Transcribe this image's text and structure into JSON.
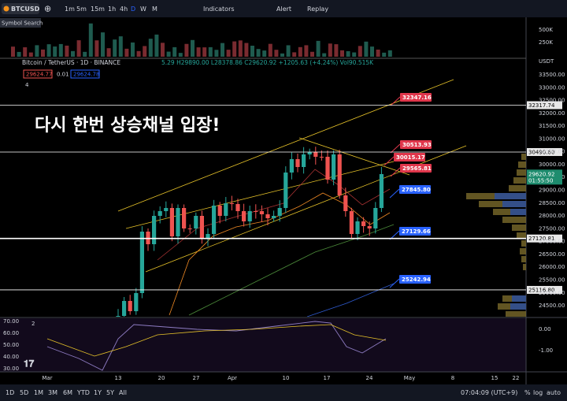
{
  "toolbar": {
    "symbol": "BTCUSD",
    "intervals": [
      "1m",
      "5m",
      "15m",
      "1h",
      "4h",
      "D",
      "W",
      "M"
    ],
    "indicators": "Indicators",
    "alert": "Alert",
    "replay": "Replay"
  },
  "symbol_search": "Symbol Search",
  "legend": {
    "title": "Bitcoin / TetherUS · 1D · BINANCE",
    "ohlc": "5.29 H29890.00 L28378.86 C29620.92 +1205.63 (+4.24%) Vol90.515K",
    "bid": "29624.77",
    "spread": "0.01",
    "ask": "29624.78",
    "indicators_count": "4"
  },
  "annotation": "다시 한번 상승채널 입장!",
  "price_labels": [
    {
      "text": "32347.16",
      "color": "red"
    },
    {
      "text": "30513.93",
      "color": "red"
    },
    {
      "text": "30015.17",
      "color": "red"
    },
    {
      "text": "29565.81",
      "color": "red"
    },
    {
      "text": "27845.80",
      "color": "blue"
    },
    {
      "text": "27129.66",
      "color": "blue"
    },
    {
      "text": "25242.94",
      "color": "blue"
    }
  ],
  "price_axis": {
    "currency": "USDT",
    "ticks": [
      "33500.00",
      "33000.00",
      "32500.00",
      "32000.00",
      "31500.00",
      "31000.00",
      "30500.00",
      "30000.00",
      "29500.00",
      "29000.00",
      "28500.00",
      "28000.00",
      "27500.00",
      "27000.00",
      "26500.00",
      "26000.00",
      "25500.00",
      "25000.00",
      "24500.00"
    ],
    "levels": [
      "32317.74",
      "30490.60",
      "27120.81",
      "25116.80"
    ],
    "last_price": "29620.92",
    "countdown": "01:55:50"
  },
  "volume_axis": [
    "500K",
    "250K"
  ],
  "oscillator": {
    "pane_count": "2",
    "left_ticks": [
      "70.00",
      "60.00",
      "50.00",
      "40.00",
      "30.00"
    ],
    "right_ticks": [
      "0.00",
      "-1.00"
    ]
  },
  "time_axis": [
    "Mar",
    "13",
    "20",
    "27",
    "Apr",
    "10",
    "17",
    "24",
    "May",
    "8",
    "15",
    "22"
  ],
  "bottom_bar": {
    "ranges": [
      "1D",
      "5D",
      "1M",
      "3M",
      "6M",
      "YTD",
      "1Y",
      "5Y",
      "All"
    ],
    "clock": "07:04:09 (UTC+9)",
    "percent": "%",
    "log": "log",
    "auto": "auto"
  }
}
